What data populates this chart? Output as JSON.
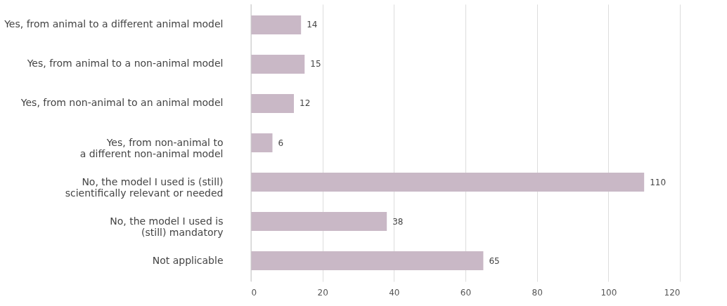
{
  "chart_data": {
    "type": "bar",
    "orientation": "horizontal",
    "categories": [
      "Yes, from animal to a different animal model",
      "Yes, from animal to a non-animal model",
      "Yes, from non-animal to an animal model",
      "Yes, from non-animal to\na different non-animal model",
      "No, the model I used is (still)\nscientifically relevant or needed",
      "No, the model I used is\n(still) mandatory",
      "Not applicable"
    ],
    "values": [
      14,
      15,
      12,
      6,
      110,
      38,
      65
    ],
    "color": "#c9b8c6",
    "xlim": [
      0,
      120
    ],
    "xticks": [
      0,
      20,
      40,
      60,
      80,
      100,
      120
    ],
    "grid": "x",
    "data_labels": true
  }
}
